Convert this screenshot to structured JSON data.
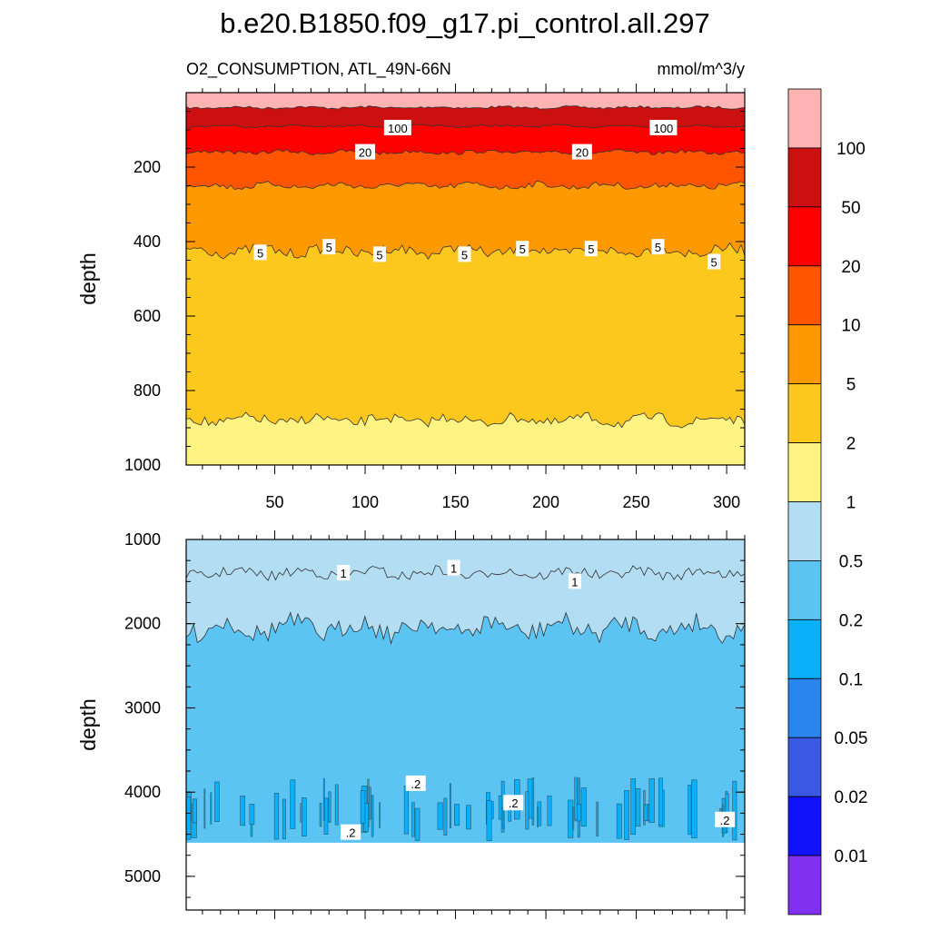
{
  "chart_data": [
    {
      "type": "contour",
      "panel": "upper",
      "title": "b.e20.B1850.f09_g17.pi_control.all.297",
      "left_subtitle": "O2_CONSUMPTION, ATL_49N-66N",
      "right_subtitle": "mmol/m^3/y",
      "ylabel": "depth",
      "xlabel": "",
      "xlim": [
        1,
        310
      ],
      "ylim": [
        1000,
        0
      ],
      "xticks": [
        50,
        100,
        150,
        200,
        250,
        300
      ],
      "yticks": [
        200,
        400,
        600,
        800,
        1000
      ],
      "contour_levels_depth_mean": [
        {
          "level": 100,
          "depth": 40
        },
        {
          "level": 50,
          "depth": 90
        },
        {
          "level": 20,
          "depth": 160
        },
        {
          "level": 10,
          "depth": 250
        },
        {
          "level": 5,
          "depth": 425
        },
        {
          "level": 2,
          "depth": 880
        }
      ],
      "contour_labels": [
        {
          "text": "100",
          "x": 118,
          "y": 95
        },
        {
          "text": "100",
          "x": 265,
          "y": 95
        },
        {
          "text": "20",
          "x": 100,
          "y": 160
        },
        {
          "text": "20",
          "x": 220,
          "y": 160
        },
        {
          "text": "5",
          "x": 42,
          "y": 430
        },
        {
          "text": "5",
          "x": 80,
          "y": 415
        },
        {
          "text": "5",
          "x": 108,
          "y": 435
        },
        {
          "text": "5",
          "x": 155,
          "y": 435
        },
        {
          "text": "5",
          "x": 187,
          "y": 420
        },
        {
          "text": "5",
          "x": 225,
          "y": 420
        },
        {
          "text": "5",
          "x": 262,
          "y": 415
        },
        {
          "text": "5",
          "x": 293,
          "y": 455
        }
      ]
    },
    {
      "type": "contour",
      "panel": "lower",
      "ylabel": "depth",
      "xlim": [
        1,
        310
      ],
      "ylim": [
        5400,
        1000
      ],
      "yticks": [
        1000,
        2000,
        3000,
        4000,
        5000
      ],
      "data_bottom_depth": 4600,
      "contour_levels_depth_mean": [
        {
          "level": 1,
          "depth": 1400
        },
        {
          "level": 0.5,
          "depth": 2050
        },
        {
          "level": 0.2,
          "depth": 4200
        }
      ],
      "contour_labels": [
        {
          "text": "1",
          "x": 88,
          "y": 1400
        },
        {
          "text": "1",
          "x": 149,
          "y": 1340
        },
        {
          "text": "1",
          "x": 216,
          "y": 1500
        },
        {
          "text": ".2",
          "x": 128,
          "y": 3900
        },
        {
          "text": ".2",
          "x": 182,
          "y": 4130
        },
        {
          "text": ".2",
          "x": 92,
          "y": 4480
        },
        {
          "text": ".2",
          "x": 299,
          "y": 4330
        }
      ]
    },
    {
      "type": "colorbar",
      "levels": [
        "100",
        "50",
        "20",
        "10",
        "5",
        "2",
        "1",
        "0.5",
        "0.2",
        "0.1",
        "0.05",
        "0.02",
        "0.01"
      ],
      "colors": [
        "#ffb3b3",
        "#cc1010",
        "#ff0000",
        "#ff5500",
        "#ff9900",
        "#fcc81e",
        "#fff383",
        "#b3ddf2",
        "#5bc4f2",
        "#0ab0f8",
        "#2b85ef",
        "#3a5ae6",
        "#1111fa",
        "#8030f0"
      ]
    }
  ]
}
